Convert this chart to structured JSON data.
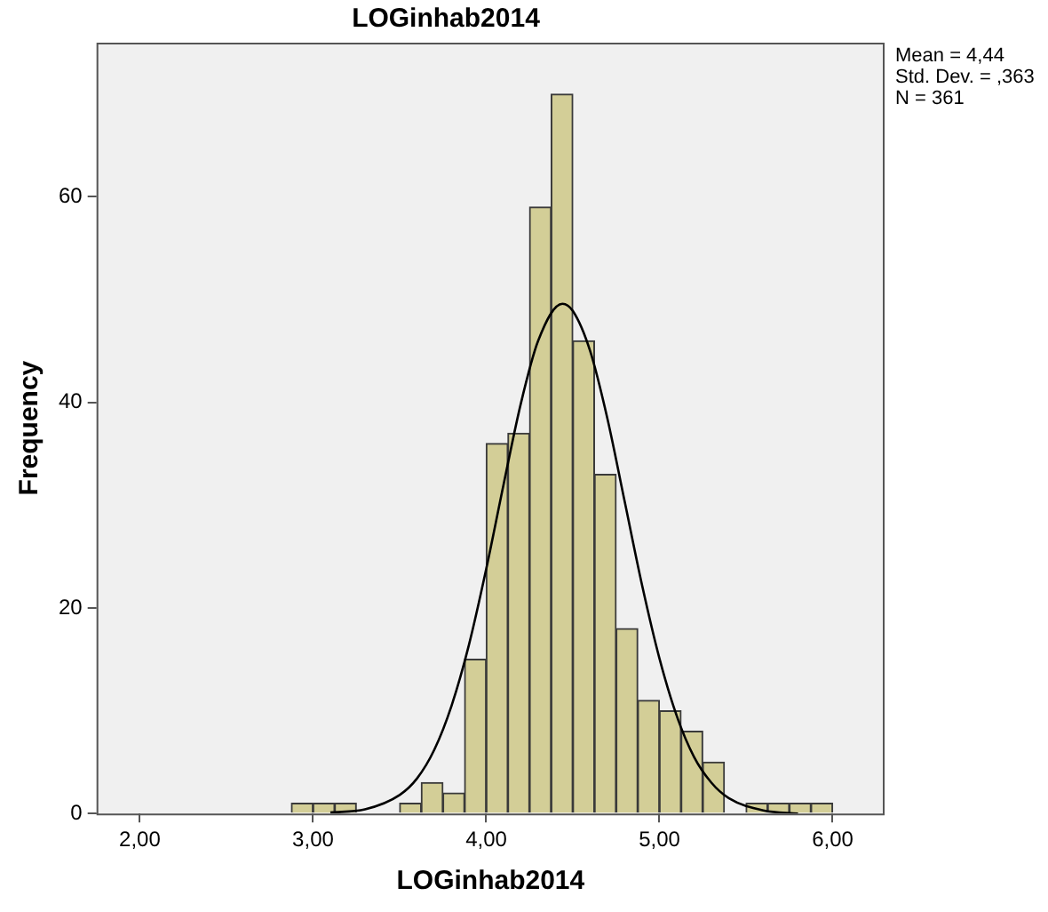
{
  "chart_data": {
    "type": "histogram",
    "title": "LOGinhab2014",
    "xlabel": "LOGinhab2014",
    "ylabel": "Frequency",
    "bins": [
      2.875,
      3.0,
      3.125,
      3.25,
      3.375,
      3.5,
      3.625,
      3.75,
      3.875,
      4.0,
      4.125,
      4.25,
      4.375,
      4.5,
      4.625,
      4.75,
      4.875,
      5.0,
      5.125,
      5.25,
      5.375,
      5.5,
      5.625,
      5.75,
      5.875,
      6.0
    ],
    "values": [
      1,
      1,
      1,
      0,
      0,
      1,
      3,
      2,
      15,
      36,
      37,
      59,
      70,
      46,
      33,
      18,
      11,
      10,
      8,
      5,
      0,
      1,
      1,
      1,
      1
    ],
    "color": "#d3ce97",
    "series": [
      {
        "type": "line",
        "color": "#000000",
        "x": [
          3.1,
          3.3,
          3.5,
          3.6,
          3.7,
          3.8,
          3.9,
          4.0,
          4.1,
          4.2,
          4.3,
          4.44,
          4.5,
          4.6,
          4.7,
          4.8,
          4.9,
          5.0,
          5.1,
          5.2,
          5.3,
          5.4,
          5.6,
          5.8
        ],
        "values": [
          0.1,
          0.4,
          1.8,
          3.4,
          6.2,
          10.5,
          16.4,
          23.8,
          32.0,
          39.9,
          46.0,
          49.6,
          48.9,
          45.0,
          38.4,
          30.3,
          22.2,
          15.1,
          9.5,
          5.5,
          3.0,
          1.5,
          0.3,
          0.0
        ]
      }
    ],
    "xlim": [
      1.75,
      6.3
    ],
    "ylim": [
      0,
      75
    ],
    "xticks": [
      {
        "value": 2,
        "label": "2,00"
      },
      {
        "value": 3,
        "label": "3,00"
      },
      {
        "value": 4,
        "label": "4,00"
      },
      {
        "value": 5,
        "label": "5,00"
      },
      {
        "value": 6,
        "label": "6,00"
      }
    ],
    "yticks": [
      0,
      20,
      40,
      60
    ],
    "annotations": [
      "Mean = 4,44",
      "Std. Dev. = ,363",
      "N = 361"
    ],
    "grid": false,
    "legend": false
  }
}
